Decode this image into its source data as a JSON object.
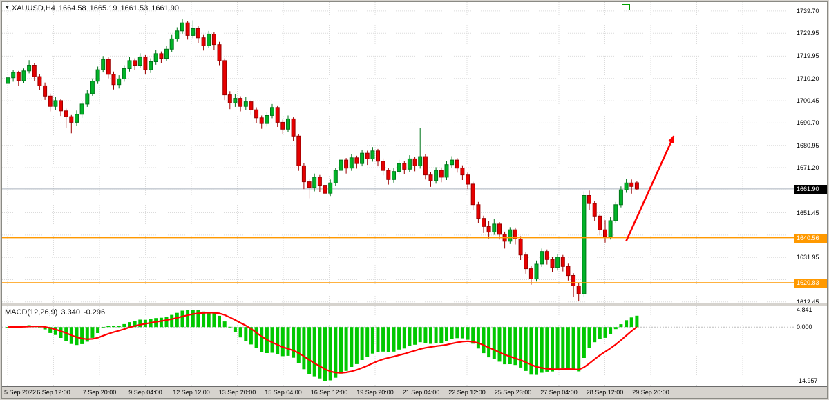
{
  "header": {
    "dropdown_icon": "▼",
    "symbol": "XAUUSD,H4",
    "open": "1664.58",
    "high": "1665.19",
    "low": "1661.53",
    "close": "1661.90"
  },
  "macd_header": {
    "name": "MACD(12,26,9)",
    "main_value": "3.340",
    "signal_value": "-0.296"
  },
  "colors": {
    "bull": "#00B327",
    "bull_dark": "#00751A",
    "bear": "#E60000",
    "bear_dark": "#9B0000",
    "hline": "#FF9900",
    "arrow": "#FF0000",
    "grid": "#DBDBDB",
    "price_line": "#AAB2BD",
    "histogram": "#00C800",
    "signal": "#FF0000",
    "tag_current_bg": "#000000",
    "tag_hline_bg": "#FF9900",
    "shift_marker": "#00A000"
  },
  "chart_data": {
    "type": "candlestick",
    "title": "XAUUSD,H4",
    "ylim": [
      1612.1,
      1743.6
    ],
    "price_ticks": [
      {
        "label": "1739.70",
        "value": 1739.7
      },
      {
        "label": "1729.95",
        "value": 1729.95
      },
      {
        "label": "1719.95",
        "value": 1719.95
      },
      {
        "label": "1710.20",
        "value": 1710.2
      },
      {
        "label": "1700.45",
        "value": 1700.45
      },
      {
        "label": "1690.70",
        "value": 1690.7
      },
      {
        "label": "1680.95",
        "value": 1680.95
      },
      {
        "label": "1671.20",
        "value": 1671.2
      },
      {
        "label": "1651.45",
        "value": 1651.45
      },
      {
        "label": "1631.95",
        "value": 1631.95
      },
      {
        "label": "1612.45",
        "value": 1612.45
      }
    ],
    "grid_extra": [
      1661.45,
      1641.7,
      1622.2
    ],
    "time_labels": [
      "5 Sep 2022",
      "6 Sep 12:00",
      "7 Sep 20:00",
      "9 Sep 04:00",
      "12 Sep 12:00",
      "13 Sep 20:00",
      "15 Sep 04:00",
      "16 Sep 12:00",
      "19 Sep 20:00",
      "21 Sep 04:00",
      "22 Sep 12:00",
      "25 Sep 23:00",
      "27 Sep 04:00",
      "28 Sep 12:00",
      "29 Sep 20:00"
    ],
    "current_price": {
      "value": 1661.9,
      "label": "1661.90"
    },
    "hlines": [
      {
        "value": 1640.56,
        "label": "1640.56"
      },
      {
        "value": 1620.83,
        "label": "1620.83"
      }
    ],
    "trend_arrow": {
      "from": {
        "bar": 117.3,
        "price": 1639.0
      },
      "to": {
        "bar": 126.3,
        "price": 1685.0
      }
    },
    "indicator": {
      "type": "MACD",
      "params": [
        12,
        26,
        9
      ],
      "source": "candle closes (EMA12 - EMA26, signal EMA9)",
      "main_last": 3.34,
      "signal_last": -0.296,
      "ylim": [
        -16.5,
        5.8
      ],
      "axis_ticks": [
        {
          "label": "4.841",
          "value": 4.841
        },
        {
          "label": "0.000",
          "value": 0.0
        },
        {
          "label": "-14.957",
          "value": -14.957
        }
      ]
    },
    "candles": [
      [
        1708.0,
        1712.0,
        1706.5,
        1710.5
      ],
      [
        1710.5,
        1713.8,
        1708.8,
        1712.8
      ],
      [
        1712.8,
        1713.5,
        1707.0,
        1709.2
      ],
      [
        1709.2,
        1714.6,
        1708.0,
        1713.5
      ],
      [
        1713.5,
        1718.2,
        1712.4,
        1716.0
      ],
      [
        1716.0,
        1716.8,
        1709.0,
        1711.0
      ],
      [
        1711.0,
        1712.2,
        1705.2,
        1707.0
      ],
      [
        1707.0,
        1708.4,
        1700.8,
        1702.5
      ],
      [
        1702.5,
        1703.6,
        1695.8,
        1698.0
      ],
      [
        1698.0,
        1702.2,
        1696.4,
        1700.5
      ],
      [
        1700.5,
        1701.2,
        1693.8,
        1696.0
      ],
      [
        1696.0,
        1697.0,
        1688.5,
        1693.5
      ],
      [
        1693.5,
        1694.2,
        1686.2,
        1691.0
      ],
      [
        1691.0,
        1696.2,
        1689.4,
        1694.5
      ],
      [
        1694.5,
        1700.4,
        1693.0,
        1699.0
      ],
      [
        1699.0,
        1705.0,
        1697.8,
        1703.5
      ],
      [
        1703.5,
        1710.2,
        1702.6,
        1709.0
      ],
      [
        1709.0,
        1715.4,
        1707.8,
        1714.0
      ],
      [
        1714.0,
        1720.0,
        1712.8,
        1718.5
      ],
      [
        1718.5,
        1719.4,
        1710.2,
        1712.0
      ],
      [
        1712.0,
        1713.2,
        1705.4,
        1707.5
      ],
      [
        1707.5,
        1711.6,
        1705.8,
        1710.0
      ],
      [
        1710.0,
        1716.0,
        1708.8,
        1714.5
      ],
      [
        1714.5,
        1719.6,
        1713.2,
        1718.0
      ],
      [
        1718.0,
        1719.0,
        1713.8,
        1716.0
      ],
      [
        1716.0,
        1721.2,
        1714.8,
        1719.5
      ],
      [
        1719.5,
        1720.4,
        1712.2,
        1714.0
      ],
      [
        1714.0,
        1719.0,
        1712.6,
        1717.5
      ],
      [
        1717.5,
        1722.6,
        1716.2,
        1721.0
      ],
      [
        1721.0,
        1722.0,
        1716.8,
        1719.0
      ],
      [
        1719.0,
        1724.6,
        1717.8,
        1723.0
      ],
      [
        1723.0,
        1729.2,
        1721.8,
        1727.5
      ],
      [
        1727.5,
        1732.6,
        1726.2,
        1731.0
      ],
      [
        1731.0,
        1736.2,
        1729.8,
        1734.5
      ],
      [
        1734.5,
        1735.4,
        1727.2,
        1729.0
      ],
      [
        1729.0,
        1735.6,
        1727.8,
        1732.0
      ],
      [
        1732.0,
        1733.0,
        1725.8,
        1728.0
      ],
      [
        1728.0,
        1729.2,
        1722.4,
        1724.5
      ],
      [
        1724.5,
        1731.0,
        1723.4,
        1729.5
      ],
      [
        1729.5,
        1730.4,
        1722.8,
        1725.0
      ],
      [
        1725.0,
        1726.2,
        1716.0,
        1718.0
      ],
      [
        1718.0,
        1719.0,
        1700.8,
        1703.0
      ],
      [
        1703.0,
        1704.6,
        1696.8,
        1699.5
      ],
      [
        1699.5,
        1703.2,
        1697.8,
        1701.5
      ],
      [
        1701.5,
        1702.4,
        1695.8,
        1698.0
      ],
      [
        1698.0,
        1702.0,
        1696.4,
        1700.0
      ],
      [
        1700.0,
        1700.8,
        1694.2,
        1696.5
      ],
      [
        1696.5,
        1697.6,
        1690.8,
        1693.0
      ],
      [
        1693.0,
        1694.0,
        1688.2,
        1690.5
      ],
      [
        1690.5,
        1695.6,
        1689.2,
        1694.0
      ],
      [
        1694.0,
        1699.0,
        1692.8,
        1697.5
      ],
      [
        1697.5,
        1698.4,
        1689.0,
        1691.0
      ],
      [
        1691.0,
        1692.2,
        1685.8,
        1688.0
      ],
      [
        1688.0,
        1694.0,
        1686.6,
        1692.5
      ],
      [
        1692.5,
        1693.2,
        1682.8,
        1685.0
      ],
      [
        1685.0,
        1686.0,
        1669.8,
        1672.0
      ],
      [
        1672.0,
        1673.2,
        1661.8,
        1665.0
      ],
      [
        1665.0,
        1666.4,
        1657.8,
        1662.5
      ],
      [
        1662.5,
        1668.6,
        1660.8,
        1667.0
      ],
      [
        1667.0,
        1668.0,
        1660.4,
        1663.5
      ],
      [
        1663.5,
        1664.6,
        1655.8,
        1660.0
      ],
      [
        1660.0,
        1666.0,
        1658.8,
        1664.5
      ],
      [
        1664.5,
        1671.2,
        1663.2,
        1670.0
      ],
      [
        1670.0,
        1676.0,
        1668.8,
        1674.5
      ],
      [
        1674.5,
        1675.4,
        1668.6,
        1671.0
      ],
      [
        1671.0,
        1677.0,
        1669.8,
        1675.5
      ],
      [
        1675.5,
        1676.4,
        1670.8,
        1673.0
      ],
      [
        1673.0,
        1679.0,
        1671.8,
        1677.5
      ],
      [
        1677.5,
        1678.6,
        1672.4,
        1675.0
      ],
      [
        1675.0,
        1680.2,
        1673.8,
        1678.5
      ],
      [
        1678.5,
        1679.4,
        1671.8,
        1674.0
      ],
      [
        1674.0,
        1675.2,
        1667.8,
        1670.0
      ],
      [
        1670.0,
        1671.0,
        1663.8,
        1666.0
      ],
      [
        1666.0,
        1671.0,
        1664.6,
        1669.5
      ],
      [
        1669.5,
        1674.6,
        1668.2,
        1673.0
      ],
      [
        1673.0,
        1674.0,
        1668.2,
        1670.5
      ],
      [
        1670.5,
        1676.6,
        1669.4,
        1675.0
      ],
      [
        1675.0,
        1676.0,
        1669.6,
        1672.0
      ],
      [
        1672.0,
        1688.4,
        1670.8,
        1676.0
      ],
      [
        1676.0,
        1677.2,
        1666.0,
        1668.0
      ],
      [
        1668.0,
        1669.2,
        1662.8,
        1665.5
      ],
      [
        1665.5,
        1671.4,
        1664.2,
        1670.0
      ],
      [
        1670.0,
        1671.0,
        1664.8,
        1667.0
      ],
      [
        1667.0,
        1674.0,
        1665.8,
        1672.5
      ],
      [
        1672.5,
        1676.2,
        1671.2,
        1674.5
      ],
      [
        1674.5,
        1675.4,
        1669.0,
        1671.0
      ],
      [
        1671.0,
        1672.2,
        1665.8,
        1668.0
      ],
      [
        1668.0,
        1669.0,
        1661.8,
        1664.0
      ],
      [
        1664.0,
        1665.0,
        1652.8,
        1655.0
      ],
      [
        1655.0,
        1656.2,
        1646.8,
        1649.0
      ],
      [
        1649.0,
        1650.2,
        1642.6,
        1645.5
      ],
      [
        1645.5,
        1647.8,
        1640.2,
        1643.0
      ],
      [
        1643.0,
        1648.6,
        1641.8,
        1646.5
      ],
      [
        1646.5,
        1647.4,
        1639.8,
        1642.0
      ],
      [
        1642.0,
        1643.2,
        1635.8,
        1639.0
      ],
      [
        1639.0,
        1645.2,
        1637.8,
        1644.0
      ],
      [
        1644.0,
        1645.0,
        1637.6,
        1640.0
      ],
      [
        1640.0,
        1641.2,
        1630.8,
        1633.0
      ],
      [
        1633.0,
        1634.2,
        1624.8,
        1627.0
      ],
      [
        1627.0,
        1628.2,
        1620.0,
        1622.5
      ],
      [
        1622.5,
        1630.6,
        1621.4,
        1629.0
      ],
      [
        1629.0,
        1635.8,
        1627.8,
        1634.5
      ],
      [
        1634.5,
        1635.4,
        1628.8,
        1631.0
      ],
      [
        1631.0,
        1632.2,
        1625.4,
        1627.5
      ],
      [
        1627.5,
        1633.2,
        1626.2,
        1632.0
      ],
      [
        1632.0,
        1633.0,
        1625.8,
        1628.0
      ],
      [
        1628.0,
        1629.2,
        1621.8,
        1624.0
      ],
      [
        1624.0,
        1625.0,
        1614.8,
        1619.5
      ],
      [
        1619.5,
        1620.6,
        1612.8,
        1616.0
      ],
      [
        1616.0,
        1660.8,
        1614.6,
        1659.0
      ],
      [
        1659.0,
        1661.2,
        1652.8,
        1655.5
      ],
      [
        1655.5,
        1656.6,
        1647.8,
        1650.0
      ],
      [
        1650.0,
        1651.0,
        1641.8,
        1644.0
      ],
      [
        1644.0,
        1648.2,
        1638.4,
        1641.0
      ],
      [
        1641.0,
        1649.8,
        1639.8,
        1648.0
      ],
      [
        1648.0,
        1656.2,
        1646.8,
        1655.0
      ],
      [
        1655.0,
        1663.0,
        1653.8,
        1661.5
      ],
      [
        1661.5,
        1666.4,
        1660.2,
        1664.5
      ],
      [
        1664.5,
        1666.0,
        1659.8,
        1663.0
      ],
      [
        1664.58,
        1665.19,
        1661.53,
        1661.9
      ]
    ]
  }
}
